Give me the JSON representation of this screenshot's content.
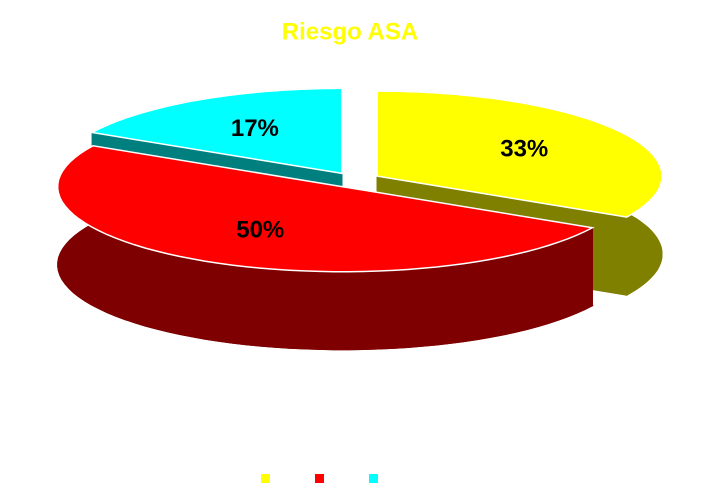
{
  "chart_data": {
    "type": "pie",
    "title": "Riesgo ASA",
    "categories": [
      null,
      null,
      null
    ],
    "values": [
      33,
      50,
      17
    ],
    "value_labels": [
      "33%",
      "50%",
      "17%"
    ],
    "colors": [
      "#ffff00",
      "#ff0000",
      "#00ffff"
    ],
    "legend": "bottom"
  }
}
